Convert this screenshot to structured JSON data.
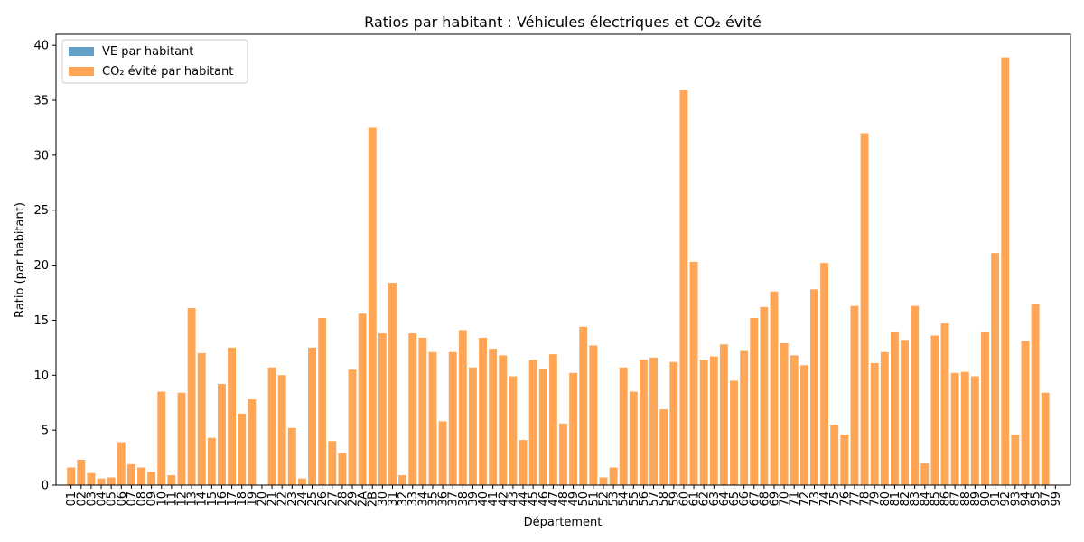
{
  "chart_data": {
    "type": "bar",
    "title": "Ratios par habitant : Véhicules électriques et CO₂ évité",
    "xlabel": "Département",
    "ylabel": "Ratio (par habitant)",
    "ylim": [
      0,
      41
    ],
    "yticks": [
      0,
      5,
      10,
      15,
      20,
      25,
      30,
      35,
      40
    ],
    "grid": false,
    "legend_position": "top-left",
    "categories": [
      "01",
      "02",
      "03",
      "04",
      "05",
      "06",
      "07",
      "08",
      "09",
      "10",
      "11",
      "12",
      "13",
      "14",
      "15",
      "16",
      "17",
      "18",
      "19",
      "20",
      "21",
      "22",
      "23",
      "24",
      "25",
      "26",
      "27",
      "28",
      "29",
      "2A",
      "2B",
      "30",
      "31",
      "32",
      "33",
      "34",
      "35",
      "36",
      "37",
      "38",
      "39",
      "40",
      "41",
      "42",
      "43",
      "44",
      "45",
      "46",
      "47",
      "48",
      "49",
      "50",
      "51",
      "52",
      "53",
      "54",
      "55",
      "56",
      "57",
      "58",
      "59",
      "60",
      "61",
      "62",
      "63",
      "64",
      "65",
      "66",
      "67",
      "68",
      "69",
      "70",
      "71",
      "72",
      "73",
      "74",
      "75",
      "76",
      "77",
      "78",
      "79",
      "80",
      "81",
      "82",
      "83",
      "84",
      "85",
      "86",
      "87",
      "88",
      "89",
      "90",
      "91",
      "92",
      "93",
      "94",
      "95",
      "97",
      "99"
    ],
    "series": [
      {
        "name": "VE par habitant",
        "color": "#1f77b4",
        "values": [
          0.01,
          0.01,
          0.01,
          0.01,
          0.01,
          0.02,
          0.01,
          0.01,
          0.01,
          0.01,
          0.01,
          0.01,
          0.02,
          0.01,
          0.01,
          0.01,
          0.01,
          0.01,
          0.01,
          0,
          0.01,
          0.01,
          0.01,
          0.01,
          0.01,
          0.01,
          0.01,
          0.01,
          0.01,
          0.01,
          0.02,
          0.01,
          0.01,
          0.01,
          0.01,
          0.01,
          0.01,
          0.01,
          0.01,
          0.01,
          0.01,
          0.01,
          0.01,
          0.01,
          0.01,
          0.01,
          0.01,
          0.01,
          0.01,
          0.01,
          0.01,
          0.01,
          0.01,
          0.01,
          0.01,
          0.01,
          0.01,
          0.01,
          0.01,
          0.01,
          0.01,
          0.02,
          0.01,
          0.01,
          0.01,
          0.01,
          0.01,
          0.01,
          0.01,
          0.01,
          0.01,
          0.01,
          0.01,
          0.01,
          0.01,
          0.01,
          0.01,
          0.01,
          0.01,
          0.02,
          0.01,
          0.01,
          0.01,
          0.01,
          0.01,
          0.01,
          0.01,
          0.01,
          0.01,
          0.01,
          0.01,
          0.01,
          0.01,
          0.02,
          0.01,
          0.01,
          0.01,
          0.01,
          0
        ]
      },
      {
        "name": "CO₂ évité par habitant",
        "color": "#ff7f0e",
        "values": [
          1.6,
          2.3,
          1.1,
          0.6,
          0.7,
          3.9,
          1.9,
          1.6,
          1.2,
          8.5,
          0.9,
          8.4,
          16.1,
          12.0,
          4.3,
          9.2,
          12.5,
          6.5,
          7.8,
          0,
          10.7,
          10.0,
          5.2,
          0.6,
          12.5,
          15.2,
          4.0,
          2.9,
          10.5,
          15.6,
          32.5,
          13.8,
          18.4,
          0.9,
          13.8,
          13.4,
          12.1,
          5.8,
          12.1,
          14.1,
          10.7,
          13.4,
          12.4,
          11.8,
          9.9,
          4.1,
          11.4,
          10.6,
          11.9,
          5.6,
          10.2,
          14.4,
          12.7,
          0.7,
          1.6,
          10.7,
          8.5,
          11.4,
          11.6,
          6.9,
          11.2,
          35.9,
          20.3,
          11.4,
          11.7,
          12.8,
          9.5,
          12.2,
          15.2,
          16.2,
          17.6,
          12.9,
          11.8,
          10.9,
          17.8,
          20.2,
          5.5,
          4.6,
          16.3,
          32.0,
          11.1,
          12.1,
          13.9,
          13.2,
          16.3,
          2.0,
          13.6,
          14.7,
          10.2,
          10.3,
          9.9,
          13.9,
          21.1,
          38.9,
          4.6,
          13.1,
          16.5,
          8.4,
          0
        ]
      }
    ]
  }
}
